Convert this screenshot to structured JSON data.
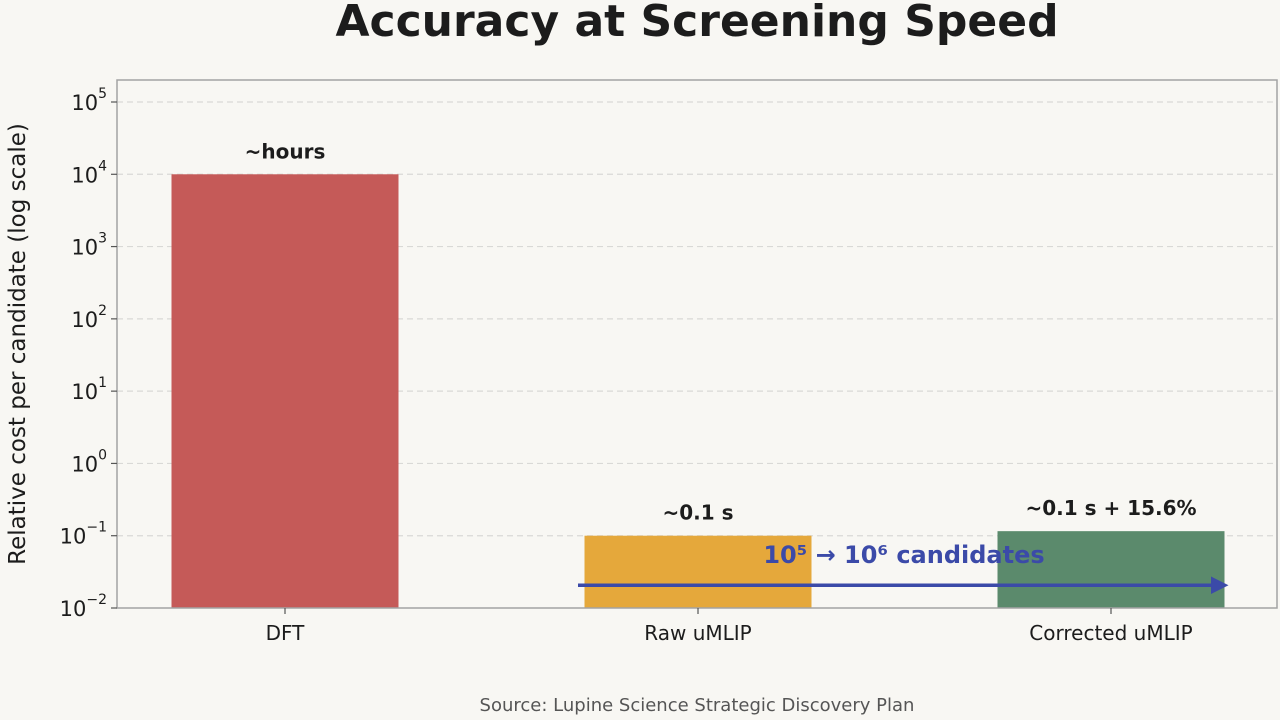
{
  "chart_data": {
    "type": "bar",
    "title": "Accuracy at Screening Speed",
    "xlabel": "",
    "ylabel": "Relative cost per candidate (log scale)",
    "yscale": "log",
    "ylim": [
      0.01,
      100000
    ],
    "grid": true,
    "categories": [
      "DFT",
      "Raw uMLIP",
      "Corrected uMLIP"
    ],
    "values": [
      10000,
      0.1,
      0.1156
    ],
    "colors": [
      "#c55a58",
      "#e5a83b",
      "#5b8a6c"
    ],
    "data_labels": [
      "~hours",
      "~0.1 s",
      "~0.1 s + 15.6%"
    ],
    "y_ticks": [
      {
        "value": 0.01,
        "base": "10",
        "exp": "−2"
      },
      {
        "value": 0.1,
        "base": "10",
        "exp": "−1"
      },
      {
        "value": 1,
        "base": "10",
        "exp": "0"
      },
      {
        "value": 10,
        "base": "10",
        "exp": "1"
      },
      {
        "value": 100,
        "base": "10",
        "exp": "2"
      },
      {
        "value": 1000,
        "base": "10",
        "exp": "3"
      },
      {
        "value": 10000,
        "base": "10",
        "exp": "4"
      },
      {
        "value": 100000,
        "base": "10",
        "exp": "5"
      }
    ],
    "annotation": {
      "text": "10⁵ → 10⁶ candidates",
      "color": "#3b4aa8",
      "arrow_from_category": "Raw uMLIP",
      "arrow_to_category": "Corrected uMLIP",
      "arrow_y_value": 0.02
    }
  },
  "source": "Source: Lupine Science Strategic Discovery Plan"
}
